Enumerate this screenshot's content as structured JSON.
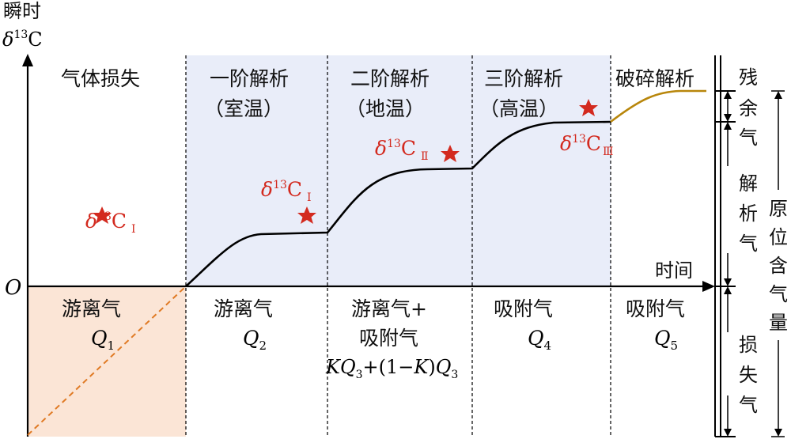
{
  "axes": {
    "y_label_line1": "瞬时",
    "y_label_delta": "δ",
    "y_label_sup": "13",
    "y_label_c": "C",
    "x_label": "时间",
    "origin": "O"
  },
  "stages_top": [
    {
      "line1": "气体损失",
      "line2": ""
    },
    {
      "line1": "一阶解析",
      "line2": "（室温）"
    },
    {
      "line1": "二阶解析",
      "line2": "（地温）"
    },
    {
      "line1": "三阶解析",
      "line2": "（高温）"
    },
    {
      "line1": "破碎解析",
      "line2": ""
    }
  ],
  "stages_bottom": [
    {
      "line1": "游离气",
      "line2": "",
      "q": "Q",
      "sub": "1"
    },
    {
      "line1": "游离气",
      "line2": "",
      "q": "Q",
      "sub": "2"
    },
    {
      "line1": "游离气+",
      "line2": "吸附气",
      "q": "Q",
      "sub": "3"
    },
    {
      "line1": "吸附气",
      "line2": "",
      "q": "Q",
      "sub": "4"
    },
    {
      "line1": "吸附气",
      "line2": "",
      "q": "Q",
      "sub": "5"
    }
  ],
  "formula": {
    "k1": "K",
    "q": "Q",
    "sub": "3",
    "plus": "+(1−",
    "k2": "K",
    "close": ")"
  },
  "markers": [
    {
      "delta": "δ",
      "sup": "13",
      "c": "C",
      "sub": "Ⅰ"
    },
    {
      "delta": "δ",
      "sup": "13",
      "c": "C",
      "sub": "Ⅰ"
    },
    {
      "delta": "δ",
      "sup": "13",
      "c": "C",
      "sub": "Ⅱ"
    },
    {
      "delta": "δ",
      "sup": "13",
      "c": "C",
      "sub": "Ⅲ"
    }
  ],
  "right_labels": {
    "residual": [
      "残",
      "余",
      "气"
    ],
    "desorbed": [
      "解",
      "析",
      "气"
    ],
    "lost": [
      "损",
      "失",
      "气"
    ],
    "in_situ": [
      "原",
      "位",
      "含",
      "气",
      "量"
    ]
  },
  "colors": {
    "shade_blue": "#e9edf9",
    "shade_orange": "#fbe5d6",
    "dash_orange": "#e07a24",
    "curve_main": "#000000",
    "curve_residual": "#b8860b",
    "star": "#d32a1f"
  }
}
